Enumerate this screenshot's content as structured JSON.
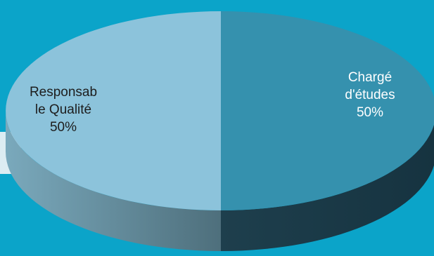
{
  "chart_data": {
    "type": "pie",
    "style": "3d",
    "slices": [
      {
        "label_lines": [
          "Responsab",
          "le Qualité",
          "50%"
        ],
        "name": "Responsable Qualité",
        "value": 50,
        "color": "#8cc3db",
        "side_color": "#4e7f93"
      },
      {
        "label_lines": [
          "Chargé",
          "d'études",
          "50%"
        ],
        "name": "Chargé d'études",
        "value": 50,
        "color": "#3591ae",
        "side_color": "#1e3f4d"
      }
    ]
  },
  "colors": {
    "background": "#0ba4c9",
    "label_dark": "#1d1d1d",
    "label_light": "#ffffff"
  }
}
